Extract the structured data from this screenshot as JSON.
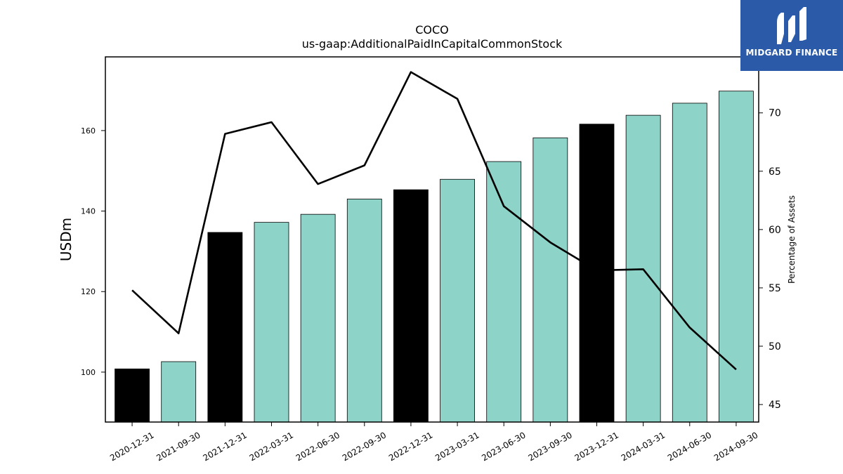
{
  "chart_data": {
    "type": "bar",
    "title": "COCO",
    "subtitle": "us-gaap:AdditionalPaidInCapitalCommonStock",
    "ylabel": "USDm",
    "y2label": "Percentage of Assets",
    "categories": [
      "2020-12-31",
      "2021-09-30",
      "2021-12-31",
      "2022-03-31",
      "2022-06-30",
      "2022-09-30",
      "2022-12-31",
      "2023-03-31",
      "2023-06-30",
      "2023-09-30",
      "2023-12-31",
      "2024-03-31",
      "2024-06-30",
      "2024-09-30"
    ],
    "series": [
      {
        "type": "bar",
        "values": [
          100.8,
          102.6,
          134.7,
          137.2,
          139.2,
          143.0,
          145.3,
          147.9,
          152.3,
          158.2,
          161.6,
          163.8,
          166.8,
          169.8
        ]
      },
      {
        "type": "line",
        "axis": "right",
        "values": [
          54.8,
          51.1,
          68.2,
          69.2,
          63.9,
          65.5,
          73.5,
          71.2,
          62.0,
          58.9,
          56.5,
          56.6,
          51.6,
          48.0
        ]
      }
    ],
    "bar_colors": [
      "#000000",
      "#8dd3c7",
      "#000000",
      "#8dd3c7",
      "#8dd3c7",
      "#8dd3c7",
      "#000000",
      "#8dd3c7",
      "#8dd3c7",
      "#8dd3c7",
      "#000000",
      "#8dd3c7",
      "#8dd3c7",
      "#8dd3c7"
    ],
    "line_color": "#000000",
    "ylim": [
      87.6,
      178.3
    ],
    "y2lim": [
      43.5,
      74.8
    ],
    "yticks": [
      100,
      120,
      140,
      160
    ],
    "y2ticks": [
      45,
      50,
      55,
      60,
      65,
      70
    ],
    "grid": false,
    "legend": "none"
  },
  "logo": {
    "text": "MIDGARD FINANCE",
    "background": "#2b5aa8"
  }
}
